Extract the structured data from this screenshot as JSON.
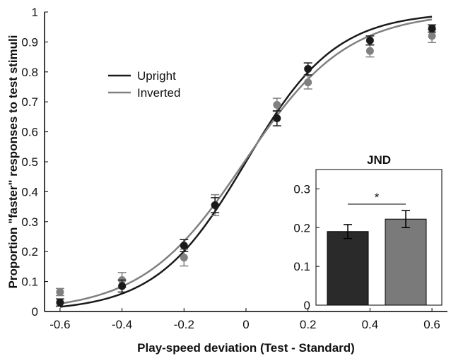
{
  "chart_data": [
    {
      "type": "scatter",
      "title": "",
      "xlabel": "Play-speed deviation (Test - Standard)",
      "ylabel": "Proportion \"faster\" responses to test stimuli",
      "xlim": [
        -0.65,
        0.65
      ],
      "ylim": [
        0,
        1
      ],
      "xticks": [
        "-0.6",
        "-0.4",
        "-0.2",
        "0",
        "0.2",
        "0.4",
        "0.6"
      ],
      "yticks": [
        "0",
        "0.1",
        "0.2",
        "0.3",
        "0.4",
        "0.5",
        "0.6",
        "0.7",
        "0.8",
        "0.9",
        "1"
      ],
      "legend_position": "top-left",
      "grid": false,
      "x": [
        -0.6,
        -0.4,
        -0.2,
        -0.1,
        0.1,
        0.2,
        0.4,
        0.6
      ],
      "series": [
        {
          "name": "Upright",
          "color": "#1a1a1a",
          "values": [
            0.03,
            0.085,
            0.22,
            0.355,
            0.645,
            0.81,
            0.905,
            0.945
          ],
          "errors": [
            0.012,
            0.02,
            0.02,
            0.025,
            0.025,
            0.02,
            0.015,
            0.012
          ],
          "fit_curve": {
            "model": "logistic",
            "mu": 0.0,
            "sigma": 0.145
          }
        },
        {
          "name": "Inverted",
          "color": "#808080",
          "values": [
            0.065,
            0.105,
            0.18,
            0.355,
            0.69,
            0.765,
            0.87,
            0.92
          ],
          "errors": [
            0.012,
            0.025,
            0.028,
            0.035,
            0.022,
            0.022,
            0.02,
            0.022
          ],
          "fit_curve": {
            "model": "logistic",
            "mu": -0.005,
            "sigma": 0.165
          }
        }
      ]
    },
    {
      "type": "bar",
      "title": "JND",
      "categories": [
        "Upright",
        "Inverted"
      ],
      "values": [
        0.19,
        0.222
      ],
      "errors": [
        0.018,
        0.022
      ],
      "colors": [
        "#2a2a2a",
        "#7a7a7a"
      ],
      "ylim": [
        0,
        0.35
      ],
      "yticks": [
        "0",
        "0.1",
        "0.2",
        "0.3"
      ],
      "annotation": "*"
    }
  ]
}
